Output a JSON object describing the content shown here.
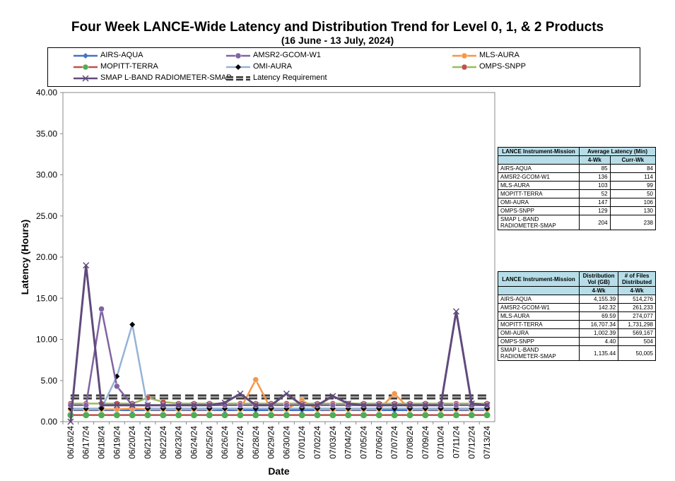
{
  "title": "Four Week LANCE-Wide Latency and Distribution Trend for Level 0, 1, & 2 Products",
  "subtitle": "(16  June   - 13  July,  2024)",
  "colors": {
    "AIRS-AQUA": "#4472c4",
    "AMSR2-GCOM-W1": "#8064a2",
    "MLS-AURA": "#f79646",
    "MOPITT-TERRA": "#c0504d",
    "OMI-AURA": "#95b3d7",
    "OMPS-SNPP": "#9bbb59",
    "SMAP L-BAND RADIOMETER-SMAP": "#604a7b",
    "Latency Requirement": "#595959"
  },
  "chart_data": {
    "type": "line",
    "xlabel": "Date",
    "ylabel": "Latency (Hours)",
    "ylim": [
      0,
      40
    ],
    "yticks": [
      "0.00",
      "5.00",
      "10.00",
      "15.00",
      "20.00",
      "25.00",
      "30.00",
      "35.00",
      "40.00"
    ],
    "grid": false,
    "legend_position": "top",
    "x": [
      "06/16/24",
      "06/17/24",
      "06/18/24",
      "06/19/24",
      "06/20/24",
      "06/21/24",
      "06/22/24",
      "06/23/24",
      "06/24/24",
      "06/25/24",
      "06/26/24",
      "06/27/24",
      "06/28/24",
      "06/29/24",
      "06/30/24",
      "07/01/24",
      "07/02/24",
      "07/03/24",
      "07/04/24",
      "07/05/24",
      "07/06/24",
      "07/07/24",
      "07/08/24",
      "07/09/24",
      "07/10/24",
      "07/11/24",
      "07/12/24",
      "07/13/24"
    ],
    "series": [
      {
        "name": "AIRS-AQUA",
        "marker": "diamond",
        "values": [
          1.4,
          1.4,
          1.4,
          1.4,
          1.4,
          1.4,
          1.4,
          1.4,
          1.4,
          1.4,
          1.4,
          1.4,
          1.4,
          1.4,
          1.4,
          1.4,
          1.4,
          1.4,
          1.4,
          1.4,
          1.4,
          1.4,
          1.4,
          1.4,
          1.4,
          1.4,
          1.4,
          1.4
        ]
      },
      {
        "name": "AMSR2-GCOM-W1",
        "marker": "circle",
        "values": [
          2.0,
          2.0,
          13.7,
          4.3,
          2.0,
          2.0,
          2.0,
          2.0,
          2.0,
          2.0,
          2.0,
          2.0,
          2.0,
          2.0,
          2.0,
          2.0,
          2.0,
          2.0,
          2.0,
          2.0,
          2.0,
          2.0,
          2.0,
          2.0,
          2.0,
          2.0,
          2.0,
          2.0
        ]
      },
      {
        "name": "MLS-AURA",
        "marker": "circle",
        "values": [
          1.5,
          1.5,
          1.5,
          1.5,
          1.6,
          1.5,
          1.5,
          1.5,
          1.5,
          1.5,
          1.6,
          1.5,
          5.1,
          1.5,
          1.5,
          2.6,
          1.5,
          1.5,
          1.5,
          1.5,
          1.5,
          3.4,
          1.5,
          1.5,
          1.5,
          1.5,
          1.5,
          1.5
        ]
      },
      {
        "name": "MOPITT-TERRA",
        "marker": "none",
        "values": [
          0.8,
          0.8,
          0.8,
          0.8,
          0.8,
          0.8,
          0.8,
          0.8,
          0.8,
          0.8,
          0.8,
          0.8,
          0.8,
          0.8,
          0.8,
          0.8,
          0.8,
          0.8,
          0.8,
          0.8,
          0.8,
          0.8,
          0.8,
          0.8,
          0.8,
          0.8,
          0.8,
          0.8
        ]
      },
      {
        "name": "OMI-AURA",
        "marker": "diamond",
        "values": [
          1.6,
          1.6,
          1.6,
          5.5,
          11.8,
          1.6,
          1.6,
          1.6,
          1.6,
          1.6,
          1.6,
          1.6,
          1.6,
          1.6,
          1.6,
          1.6,
          1.6,
          1.6,
          1.6,
          1.6,
          1.6,
          1.6,
          1.6,
          1.6,
          1.6,
          1.6,
          1.6,
          1.6
        ]
      },
      {
        "name": "OMPS-SNPP",
        "marker": "circle",
        "values": [
          2.2,
          2.2,
          2.2,
          2.2,
          2.2,
          2.9,
          2.4,
          2.2,
          2.2,
          2.2,
          2.2,
          2.2,
          2.2,
          2.2,
          2.2,
          2.2,
          2.2,
          2.2,
          2.2,
          2.2,
          2.2,
          2.2,
          2.2,
          2.2,
          2.2,
          2.2,
          2.2,
          2.2
        ]
      },
      {
        "name": "SMAP L-BAND RADIOMETER-SMAP",
        "marker": "x",
        "values": [
          0.0,
          19.0,
          2.0,
          2.0,
          2.0,
          2.0,
          2.0,
          2.0,
          2.0,
          2.0,
          2.3,
          3.4,
          2.0,
          2.0,
          3.4,
          2.0,
          2.0,
          3.1,
          2.2,
          2.0,
          2.0,
          2.0,
          2.0,
          2.0,
          2.0,
          13.4,
          2.2,
          2.0
        ]
      },
      {
        "name": "Latency Requirement",
        "marker": "none",
        "dashed": true,
        "values": [
          3,
          3,
          3,
          3,
          3,
          3,
          3,
          3,
          3,
          3,
          3,
          3,
          3,
          3,
          3,
          3,
          3,
          3,
          3,
          3,
          3,
          3,
          3,
          3,
          3,
          3,
          3,
          3
        ]
      }
    ]
  },
  "legend": {
    "items": [
      "AIRS-AQUA",
      "AMSR2-GCOM-W1",
      "MLS-AURA",
      "MOPITT-TERRA",
      "OMI-AURA",
      "OMPS-SNPP",
      "SMAP L-BAND RADIOMETER-SMAP",
      "Latency Requirement"
    ]
  },
  "latency_table": {
    "header1": "LANCE Instrument-Mission",
    "header2": "Average Latency (Min)",
    "sub1": "4-Wk",
    "sub2": "Curr-Wk",
    "rows": [
      {
        "name": "AIRS-AQUA",
        "a": "85",
        "b": "84"
      },
      {
        "name": "AMSR2-GCOM-W1",
        "a": "136",
        "b": "114"
      },
      {
        "name": "MLS-AURA",
        "a": "103",
        "b": "99"
      },
      {
        "name": "MOPITT-TERRA",
        "a": "52",
        "b": "50"
      },
      {
        "name": "OMI-AURA",
        "a": "147",
        "b": "106"
      },
      {
        "name": "OMPS-SNPP",
        "a": "129",
        "b": "130"
      },
      {
        "name": "SMAP L-BAND RADIOMETER-SMAP",
        "a": "204",
        "b": "238"
      }
    ]
  },
  "distribution_table": {
    "header1": "LANCE Instrument-Mission",
    "header2": "Distribution Vol (GB)",
    "header3": "# of Files Distributed",
    "sub1": "4-Wk",
    "sub2": "4-Wk",
    "rows": [
      {
        "name": "AIRS-AQUA",
        "a": "4,155.39",
        "b": "514,276"
      },
      {
        "name": "AMSR2-GCOM-W1",
        "a": "142.32",
        "b": "261,233"
      },
      {
        "name": "MLS-AURA",
        "a": "69.59",
        "b": "274,077"
      },
      {
        "name": "MOPITT-TERRA",
        "a": "16,707.34",
        "b": "1,731,298"
      },
      {
        "name": "OMI-AURA",
        "a": "1,002.39",
        "b": "569,167"
      },
      {
        "name": "OMPS-SNPP",
        "a": "4.40",
        "b": "504"
      },
      {
        "name": "SMAP L-BAND RADIOMETER-SMAP",
        "a": "1,135.44",
        "b": "50,005"
      }
    ]
  }
}
